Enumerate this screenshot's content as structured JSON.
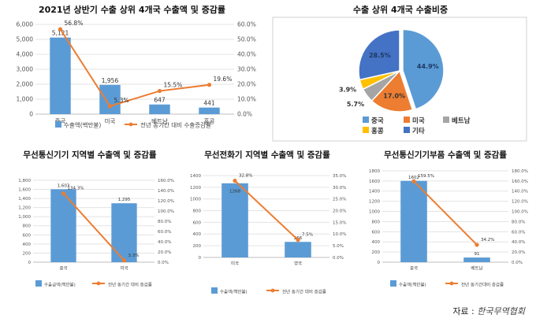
{
  "source": {
    "label": "자료 :",
    "org": "한국무역협회"
  },
  "charts": [
    {
      "title": "2021년 상반기 수출 상위 4개국 수출액 및 증감률",
      "chart_data": {
        "type": "bar",
        "categories": [
          "중국",
          "미국",
          "베트남",
          "홍콩"
        ],
        "series": [
          {
            "name": "수출액(백만불)",
            "type": "bar",
            "axis": "left",
            "values": [
              5121,
              1956,
              647,
              441
            ],
            "labels": [
              "5,121",
              "1,956",
              "647",
              "441"
            ]
          },
          {
            "name": "전년 동기간 대비 수출증감률",
            "type": "line",
            "axis": "right",
            "values": [
              56.8,
              5.3,
              15.5,
              19.6
            ],
            "labels": [
              "56.8%",
              "5.3%",
              "15.5%",
              "19.6%"
            ]
          }
        ],
        "ylim": [
          0,
          6000
        ],
        "yticks": [
          "0",
          "1,000",
          "2,000",
          "3,000",
          "4,000",
          "5,000",
          "6,000"
        ],
        "y2lim": [
          0,
          60
        ],
        "y2ticks": [
          "0.0%",
          "10.0%",
          "20.0%",
          "30.0%",
          "40.0%",
          "50.0%",
          "60.0%"
        ],
        "legend": "bottom"
      }
    },
    {
      "title": "수출 상위 4개국 수출비중",
      "chart_data": {
        "type": "pie",
        "categories": [
          "중국",
          "미국",
          "베트남",
          "홍콩",
          "기타"
        ],
        "values": [
          44.9,
          17.0,
          5.7,
          3.9,
          28.5
        ],
        "labels": [
          "44.9%",
          "17.0%",
          "5.7%",
          "3.9%",
          "28.5%"
        ],
        "colors": [
          "#5b9bd5",
          "#ed7d31",
          "#a5a5a5",
          "#ffc000",
          "#4472c4"
        ],
        "legend": "bottom"
      }
    },
    {
      "title": "무선통신기기 지역별 수출액 및 증감률",
      "chart_data": {
        "type": "bar",
        "categories": [
          "중국",
          "미국"
        ],
        "series": [
          {
            "name": "수출금액(백만불)",
            "type": "bar",
            "axis": "left",
            "values": [
              1603,
              1295
            ],
            "labels": [
              "1,603",
              "1,295"
            ]
          },
          {
            "name": "전년 동기간 대비 증감률",
            "type": "line",
            "axis": "right",
            "values": [
              134.3,
              3.3
            ],
            "labels": [
              "134.3%",
              "3.3%"
            ]
          }
        ],
        "ylim": [
          0,
          1800
        ],
        "yticks": [
          "0",
          "200",
          "400",
          "600",
          "800",
          "1,000",
          "1,200",
          "1,400",
          "1,600",
          "1,800"
        ],
        "y2lim": [
          0,
          160
        ],
        "y2ticks": [
          "0.0%",
          "20.0%",
          "40.0%",
          "60.0%",
          "80.0%",
          "100.0%",
          "120.0%",
          "140.0%",
          "160.0%"
        ],
        "legend": "bottom"
      }
    },
    {
      "title": "무선전화기 지역별 수출액 및 증감률",
      "chart_data": {
        "type": "bar",
        "categories": [
          "미국",
          "영국"
        ],
        "series": [
          {
            "name": "수출액(백만불)",
            "type": "bar",
            "axis": "left",
            "values": [
              1268,
              266
            ],
            "labels": [
              "1268",
              "266"
            ]
          },
          {
            "name": "전년 동기간 대비 증감률",
            "type": "line",
            "axis": "right",
            "values": [
              32.8,
              7.5
            ],
            "labels": [
              "32.8%",
              "7.5%"
            ]
          }
        ],
        "ylim": [
          0,
          1400
        ],
        "yticks": [
          "0",
          "200",
          "400",
          "600",
          "800",
          "1000",
          "1200",
          "1400"
        ],
        "y2lim": [
          0,
          35
        ],
        "y2ticks": [
          "0.0%",
          "5.0%",
          "10.0%",
          "15.0%",
          "20.0%",
          "25.0%",
          "30.0%",
          "35.0%"
        ],
        "legend": "bottom"
      }
    },
    {
      "title": "무선통신기기부품 수출액 및 증감률",
      "chart_data": {
        "type": "bar",
        "categories": [
          "중국",
          "베트남"
        ],
        "series": [
          {
            "name": "수출액(백만불)",
            "type": "bar",
            "axis": "left",
            "values": [
              1602,
              91
            ],
            "labels": [
              "1602",
              "91"
            ]
          },
          {
            "name": "전년 동기간대비 증감률",
            "type": "line",
            "axis": "right",
            "values": [
              159.5,
              34.2
            ],
            "labels": [
              "159.5%",
              "34.2%"
            ]
          }
        ],
        "ylim": [
          0,
          1800
        ],
        "yticks": [
          "0",
          "200",
          "400",
          "600",
          "800",
          "1000",
          "1200",
          "1400",
          "1600",
          "1800"
        ],
        "y2lim": [
          0,
          180
        ],
        "y2ticks": [
          "0.0%",
          "20.0%",
          "40.0%",
          "60.0%",
          "80.0%",
          "100.0%",
          "120.0%",
          "140.0%",
          "160.0%",
          "180.0%"
        ],
        "legend": "bottom"
      }
    }
  ]
}
